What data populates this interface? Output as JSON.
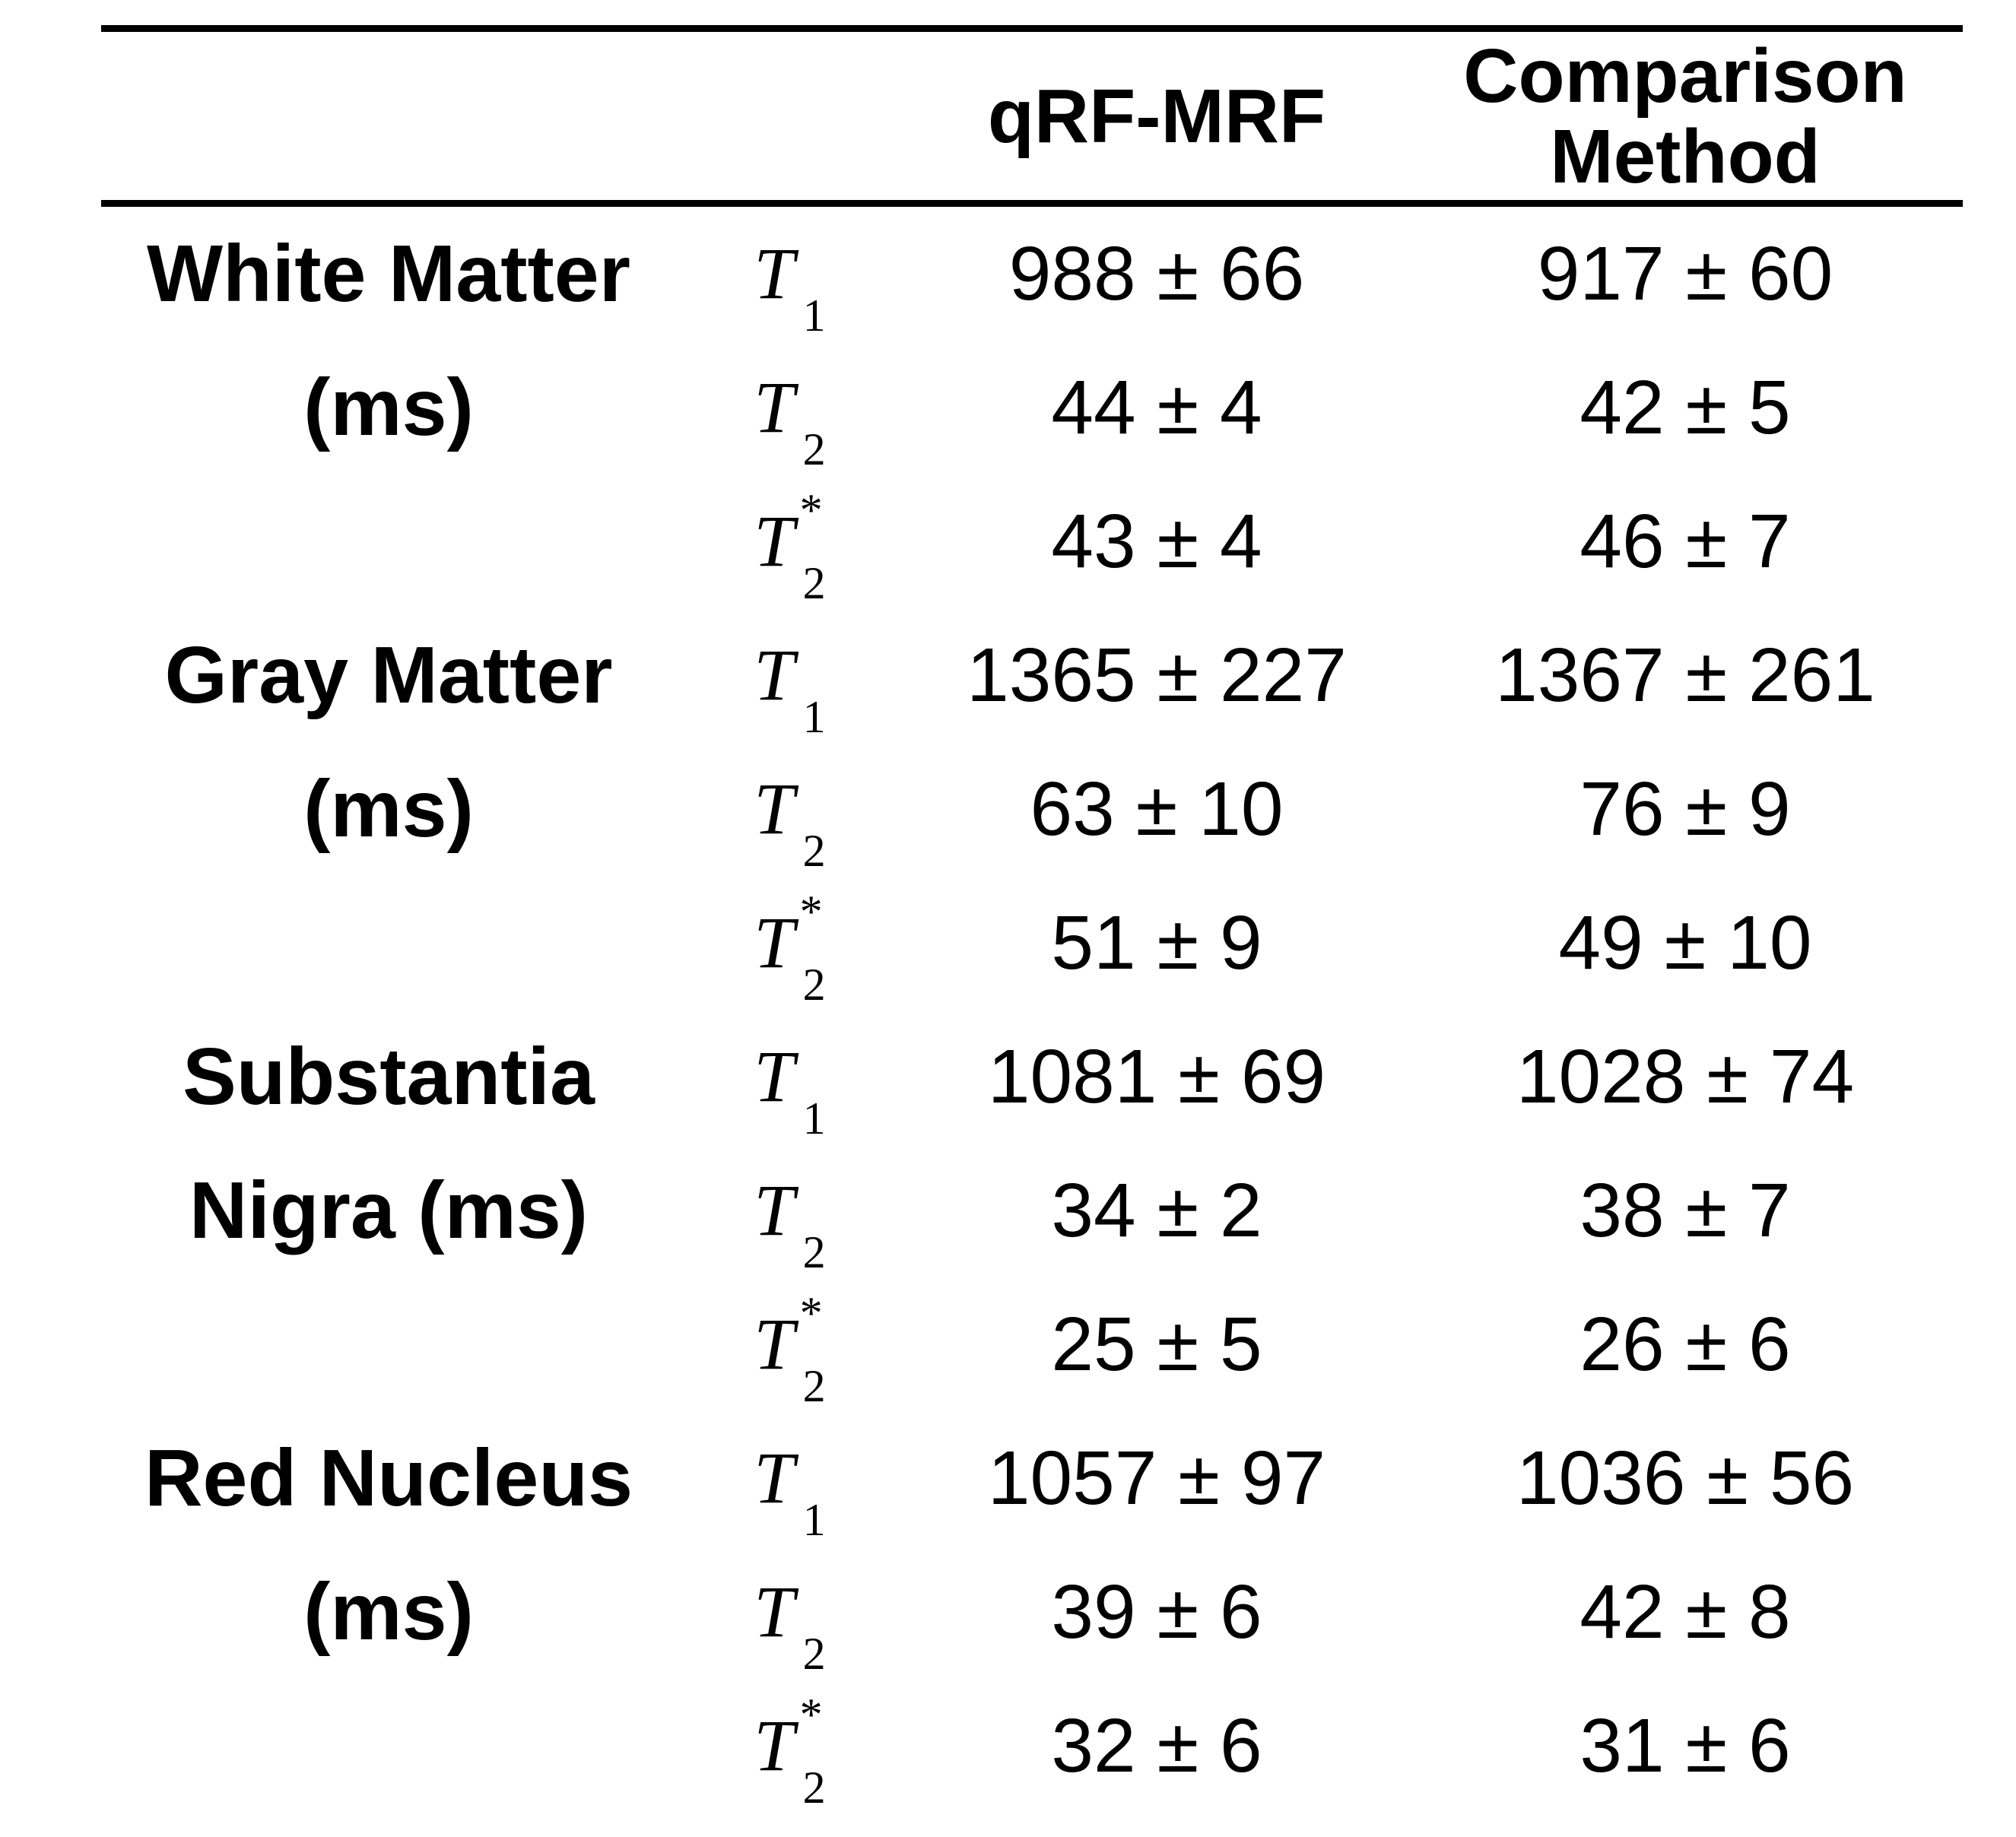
{
  "theme": {
    "text_color": "#000000",
    "background_color": "#ffffff"
  },
  "table": {
    "header": {
      "method_a": "qRF-MRF",
      "method_b_line1": "Comparison",
      "method_b_line2": "Method"
    },
    "groups": [
      {
        "region_line1": "White Matter",
        "region_line2": "(ms)"
      },
      {
        "region_line1": "Gray Matter",
        "region_line2": "(ms)"
      },
      {
        "region_line1": "Substantia",
        "region_line2": "Nigra (ms)"
      },
      {
        "region_line1": "Red Nucleus",
        "region_line2": "(ms)"
      }
    ],
    "rows": [
      {
        "param_base": "T",
        "param_sub": "1",
        "param_sup": "",
        "qrf": "988 ± 66",
        "comparison": "917 ± 60"
      },
      {
        "param_base": "T",
        "param_sub": "2",
        "param_sup": "",
        "qrf": "44 ± 4",
        "comparison": "42 ± 5"
      },
      {
        "param_base": "T",
        "param_sub": "2",
        "param_sup": "*",
        "qrf": "43 ± 4",
        "comparison": "46 ± 7"
      },
      {
        "param_base": "T",
        "param_sub": "1",
        "param_sup": "",
        "qrf": "1365 ± 227",
        "comparison": "1367 ± 261"
      },
      {
        "param_base": "T",
        "param_sub": "2",
        "param_sup": "",
        "qrf": "63 ± 10",
        "comparison": "76 ± 9"
      },
      {
        "param_base": "T",
        "param_sub": "2",
        "param_sup": "*",
        "qrf": "51 ± 9",
        "comparison": "49 ± 10"
      },
      {
        "param_base": "T",
        "param_sub": "1",
        "param_sup": "",
        "qrf": "1081 ± 69",
        "comparison": "1028 ± 74"
      },
      {
        "param_base": "T",
        "param_sub": "2",
        "param_sup": "",
        "qrf": "34 ± 2",
        "comparison": "38 ± 7"
      },
      {
        "param_base": "T",
        "param_sub": "2",
        "param_sup": "*",
        "qrf": "25 ± 5",
        "comparison": "26 ± 6"
      },
      {
        "param_base": "T",
        "param_sub": "1",
        "param_sup": "",
        "qrf": "1057 ± 97",
        "comparison": "1036 ± 56"
      },
      {
        "param_base": "T",
        "param_sub": "2",
        "param_sup": "",
        "qrf": "39 ± 6",
        "comparison": "42 ± 8"
      },
      {
        "param_base": "T",
        "param_sub": "2",
        "param_sup": "*",
        "qrf": "32 ± 6",
        "comparison": "31 ± 6"
      }
    ]
  },
  "chart_data": {
    "type": "table",
    "title": "",
    "columns": [
      "Region",
      "Parameter",
      "qRF-MRF",
      "Comparison Method"
    ],
    "rows": [
      [
        "White Matter (ms)",
        "T1",
        "988 ± 66",
        "917 ± 60"
      ],
      [
        "White Matter (ms)",
        "T2",
        "44 ± 4",
        "42 ± 5"
      ],
      [
        "White Matter (ms)",
        "T2*",
        "43 ± 4",
        "46 ± 7"
      ],
      [
        "Gray Matter (ms)",
        "T1",
        "1365 ± 227",
        "1367 ± 261"
      ],
      [
        "Gray Matter (ms)",
        "T2",
        "63 ± 10",
        "76 ± 9"
      ],
      [
        "Gray Matter (ms)",
        "T2*",
        "51 ± 9",
        "49 ± 10"
      ],
      [
        "Substantia Nigra (ms)",
        "T1",
        "1081 ± 69",
        "1028 ± 74"
      ],
      [
        "Substantia Nigra (ms)",
        "T2",
        "34 ± 2",
        "38 ± 7"
      ],
      [
        "Substantia Nigra (ms)",
        "T2*",
        "25 ± 5",
        "26 ± 6"
      ],
      [
        "Red Nucleus (ms)",
        "T1",
        "1057 ± 97",
        "1036 ± 56"
      ],
      [
        "Red Nucleus (ms)",
        "T2",
        "39 ± 6",
        "42 ± 8"
      ],
      [
        "Red Nucleus (ms)",
        "T2*",
        "32 ± 6",
        "31 ± 6"
      ]
    ]
  }
}
